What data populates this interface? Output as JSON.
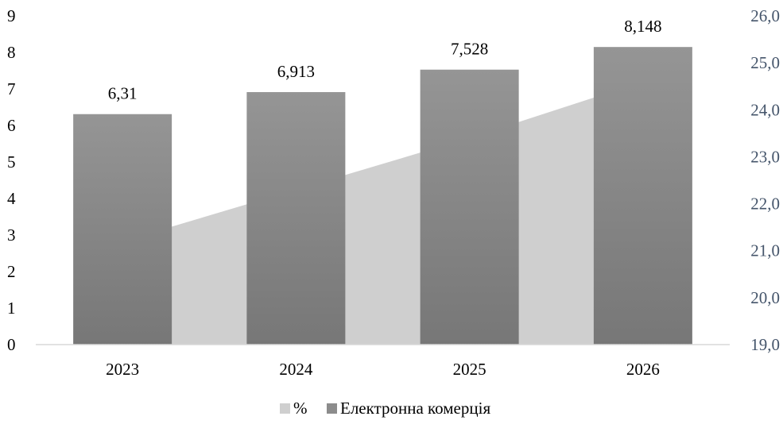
{
  "chart_data": {
    "type": "bar",
    "categories": [
      "2023",
      "2024",
      "2025",
      "2026"
    ],
    "series": [
      {
        "name": "Електронна комерція",
        "type": "bar",
        "axis": "left",
        "values": [
          6.31,
          6.913,
          7.528,
          8.148
        ],
        "data_labels": [
          "6,31",
          "6,913",
          "7,528",
          "8,148"
        ],
        "color": "#8c8c8c"
      },
      {
        "name": "%",
        "type": "area",
        "axis": "right",
        "values": [
          21.2,
          22.3,
          23.4,
          24.6
        ],
        "color": "#cfcfcf"
      }
    ],
    "y_left": {
      "min": 0,
      "max": 9,
      "ticks": [
        "0",
        "1",
        "2",
        "3",
        "4",
        "5",
        "6",
        "7",
        "8",
        "9"
      ]
    },
    "y_right": {
      "min": 19,
      "max": 26,
      "ticks": [
        "19,0",
        "20,0",
        "21,0",
        "22,0",
        "23,0",
        "24,0",
        "25,0",
        "26,0"
      ],
      "color": "#44546a"
    },
    "legend": {
      "position": "bottom",
      "items": [
        "%",
        "Електронна комерція"
      ]
    },
    "grid": false
  }
}
